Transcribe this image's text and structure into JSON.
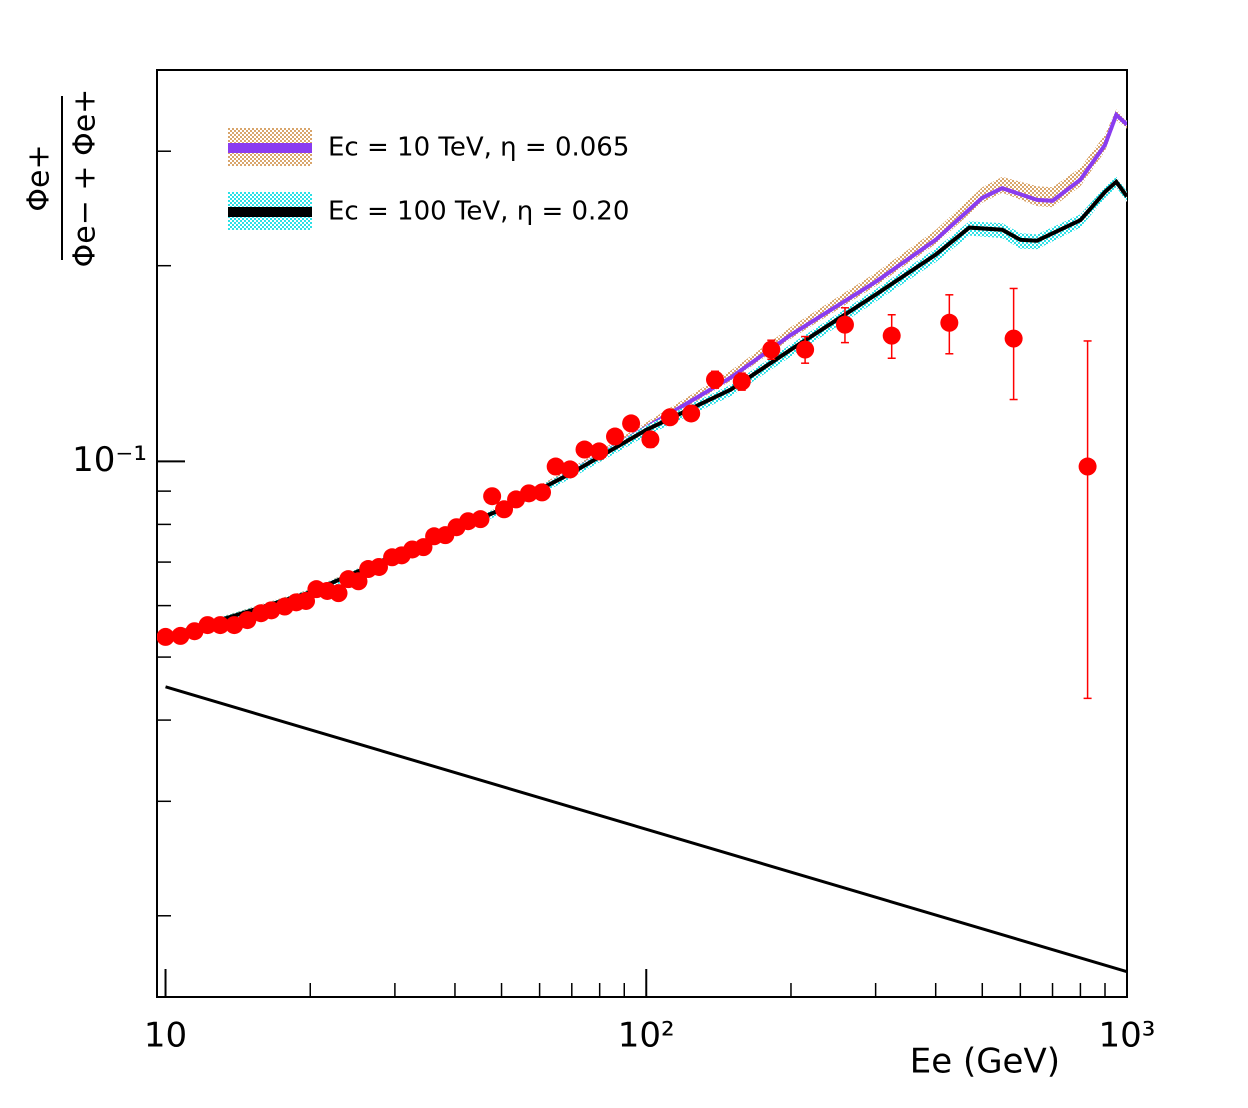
{
  "chart_data": {
    "type": "line",
    "log_x": true,
    "log_y": true,
    "x_label": "Ee (GeV)",
    "y_label": {
      "numerator": "Φe+",
      "denominator": "Φe− + Φe+"
    },
    "xlim": [
      9.6,
      1000
    ],
    "ylim": [
      0.015,
      0.4
    ],
    "xticks": [
      10,
      {
        "value": 100,
        "label": "10²"
      },
      {
        "value": 1000,
        "label": "10³"
      }
    ],
    "xminorticks": [
      20,
      30,
      40,
      50,
      60,
      70,
      80,
      90,
      200,
      300,
      400,
      500,
      600,
      700,
      800,
      900
    ],
    "yticks": [
      {
        "value": 0.1,
        "label": "10⁻¹"
      }
    ],
    "yminorticks": [
      0.02,
      0.03,
      0.04,
      0.05,
      0.06,
      0.07,
      0.08,
      0.09,
      0.2,
      0.3
    ],
    "legend_position": "top-left",
    "series": [
      {
        "name": "Ec = 10 TeV, η = 0.065",
        "style": "band-line",
        "color": "#8a3cf0",
        "band_color": "#d9a56b",
        "x": [
          10,
          20,
          30,
          50,
          70,
          100,
          150,
          200,
          300,
          400,
          500,
          550,
          650,
          700,
          800,
          900,
          950,
          1000
        ],
        "values": [
          0.0537,
          0.0629,
          0.0717,
          0.0844,
          0.0965,
          0.1128,
          0.1346,
          0.1566,
          0.1889,
          0.2192,
          0.2544,
          0.2632,
          0.2525,
          0.2517,
          0.2712,
          0.3068,
          0.3413,
          0.3296
        ],
        "band_high": [
          0.0543,
          0.0636,
          0.0725,
          0.0854,
          0.0978,
          0.1148,
          0.138,
          0.161,
          0.195,
          0.227,
          0.264,
          0.274,
          0.265,
          0.264,
          0.283,
          0.318,
          0.348,
          0.334
        ],
        "band_low": [
          0.0532,
          0.0622,
          0.071,
          0.0836,
          0.0955,
          0.1115,
          0.133,
          0.1545,
          0.186,
          0.216,
          0.25,
          0.259,
          0.247,
          0.246,
          0.265,
          0.3,
          0.335,
          0.325
        ]
      },
      {
        "name": "Ec = 100 TeV, η = 0.20",
        "style": "band-line",
        "color": "#000000",
        "band_color": "#2de0e6",
        "x": [
          10,
          20,
          30,
          50,
          70,
          100,
          150,
          200,
          300,
          400,
          470,
          550,
          600,
          650,
          800,
          900,
          950,
          1000
        ],
        "values": [
          0.0537,
          0.0629,
          0.0717,
          0.0844,
          0.096,
          0.1118,
          0.129,
          0.1486,
          0.1805,
          0.208,
          0.2289,
          0.2272,
          0.2192,
          0.2185,
          0.235,
          0.2597,
          0.2692,
          0.2555
        ],
        "band_high": [
          0.0542,
          0.0635,
          0.0724,
          0.0853,
          0.0972,
          0.1135,
          0.1312,
          0.1515,
          0.184,
          0.2125,
          0.234,
          0.2325,
          0.2245,
          0.2235,
          0.24,
          0.2645,
          0.274,
          0.26
        ],
        "band_low": [
          0.053,
          0.062,
          0.0706,
          0.083,
          0.0943,
          0.1095,
          0.126,
          0.145,
          0.176,
          0.2025,
          0.2225,
          0.2205,
          0.2125,
          0.212,
          0.229,
          0.254,
          0.264,
          0.2505
        ]
      },
      {
        "style": "line",
        "color": "#000000",
        "x": [
          10,
          1000
        ],
        "values": [
          0.045,
          0.01641
        ]
      },
      {
        "style": "points",
        "color": "#ff0000",
        "x": [
          10,
          10.74,
          11.49,
          12.23,
          13.0,
          13.9,
          14.8,
          15.8,
          16.6,
          17.7,
          18.7,
          19.6,
          20.6,
          21.7,
          22.9,
          24.0,
          25.2,
          26.4,
          27.8,
          29.6,
          31.0,
          32.6,
          34.4,
          36.2,
          38.2,
          40.3,
          42.6,
          45.2,
          47.8,
          50.6,
          53.6,
          57.0,
          60.7,
          64.8,
          69.4,
          74.4,
          79.8,
          86.1,
          93.0,
          102,
          112,
          124,
          139,
          158,
          182,
          214,
          259,
          324,
          427,
          581,
          828
        ],
        "values": [
          0.0537,
          0.0539,
          0.0548,
          0.056,
          0.056,
          0.056,
          0.057,
          0.0584,
          0.059,
          0.0598,
          0.0607,
          0.061,
          0.0636,
          0.0632,
          0.0627,
          0.0659,
          0.0654,
          0.0683,
          0.0688,
          0.0712,
          0.0717,
          0.0732,
          0.0738,
          0.0767,
          0.077,
          0.0792,
          0.0809,
          0.0815,
          0.0884,
          0.0844,
          0.0874,
          0.0893,
          0.0896,
          0.0982,
          0.0972,
          0.1043,
          0.1036,
          0.1092,
          0.1144,
          0.1081,
          0.1169,
          0.1185,
          0.1336,
          0.1327,
          0.1486,
          0.1486,
          0.1623,
          0.1561,
          0.1634,
          0.1545,
          0.0982
        ],
        "errors": [
          0.001,
          0.001,
          0.001,
          0.001,
          0.001,
          0.001,
          0.001,
          0.001,
          0.001,
          0.001,
          0.001,
          0.001,
          0.001,
          0.001,
          0.001,
          0.001,
          0.001,
          0.001,
          0.001,
          0.001,
          0.001,
          0.001,
          0.001,
          0.001,
          0.001,
          0.001,
          0.001,
          0.001,
          0.0015,
          0.0015,
          0.0015,
          0.0015,
          0.0015,
          0.002,
          0.002,
          0.002,
          0.002,
          0.002,
          0.0025,
          0.003,
          0.003,
          0.003,
          0.004,
          0.004,
          0.005,
          0.007,
          0.01,
          0.012,
          0.017,
          0.03,
          0.055
        ]
      }
    ]
  }
}
